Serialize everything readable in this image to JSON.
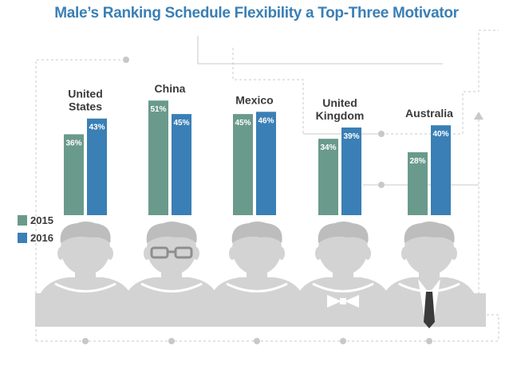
{
  "title": "Male’s Ranking Schedule Flexibility a Top-Three Motivator",
  "colors": {
    "title": "#3a7fb5",
    "series_2015": "#6a9a8c",
    "series_2016": "#3a7fb5",
    "category_text": "#3a3a3a",
    "figure_gray": "#d3d3d3",
    "dotted_line": "#c8c8c8"
  },
  "legend": [
    {
      "label": "2015",
      "color": "#6a9a8c"
    },
    {
      "label": "2016",
      "color": "#3a7fb5"
    }
  ],
  "icons": [
    "man-short-hair-icon",
    "man-glasses-icon",
    "man-spiky-hair-icon",
    "man-bowtie-icon",
    "man-necktie-icon"
  ],
  "chart_data": {
    "type": "bar",
    "title": "Male’s Ranking Schedule Flexibility a Top-Three Motivator",
    "categories": [
      [
        "United",
        "States"
      ],
      [
        "China"
      ],
      [
        "Mexico"
      ],
      [
        "United",
        "Kingdom"
      ],
      [
        "Australia"
      ]
    ],
    "series": [
      {
        "name": "2015",
        "values": [
          36,
          51,
          45,
          34,
          28
        ],
        "labels": [
          "36%",
          "51%",
          "45%",
          "34%",
          "28%"
        ]
      },
      {
        "name": "2016",
        "values": [
          43,
          45,
          46,
          39,
          40
        ],
        "labels": [
          "43%",
          "45%",
          "46%",
          "39%",
          "40%"
        ]
      }
    ],
    "xlabel": "",
    "ylabel": "",
    "grid": false,
    "legend_position": "left"
  }
}
